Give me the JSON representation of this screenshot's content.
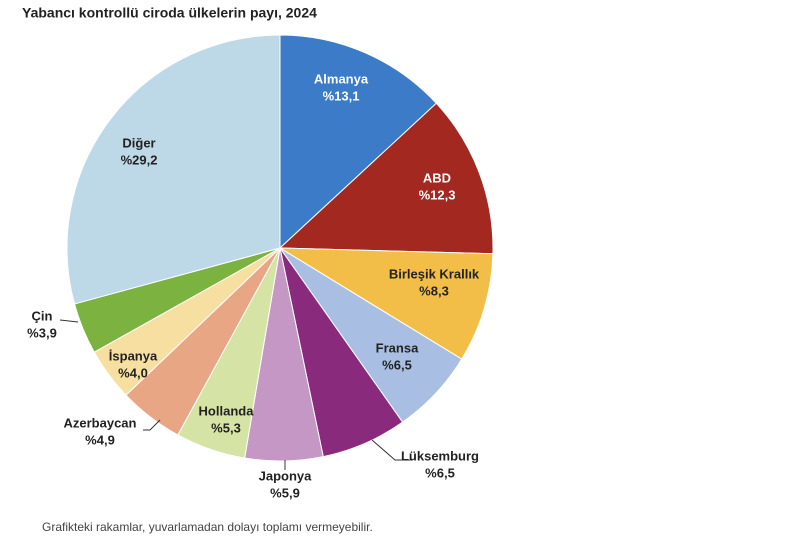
{
  "chart_data": {
    "type": "pie",
    "title": "Yabancı kontrollü ciroda ülkelerin payı, 2024",
    "categories": [
      "Almanya",
      "ABD",
      "Birleşik Krallık",
      "Fransa",
      "Lüksemburg",
      "Japonya",
      "Hollanda",
      "Azerbaycan",
      "İspanya",
      "Çin",
      "Diğer"
    ],
    "values": [
      13.1,
      12.3,
      8.3,
      6.5,
      6.5,
      5.9,
      5.3,
      4.9,
      4.0,
      3.9,
      29.2
    ],
    "value_labels": [
      "%13,1",
      "%12,3",
      "%8,3",
      "%6,5",
      "%6,5",
      "%5,9",
      "%5,3",
      "%4,9",
      "%4,0",
      "%3,9",
      "%29,2"
    ],
    "colors": [
      "#3b7bc8",
      "#a3281f",
      "#f2be48",
      "#a8bfe3",
      "#8a2a7d",
      "#c597c4",
      "#d5e3a4",
      "#e9a685",
      "#f6dfa0",
      "#7cb240",
      "#bdd8e6"
    ],
    "note": "Grafikteki rakamlar, yuvarlamadan dolayı toplamı vermeyebilir."
  }
}
